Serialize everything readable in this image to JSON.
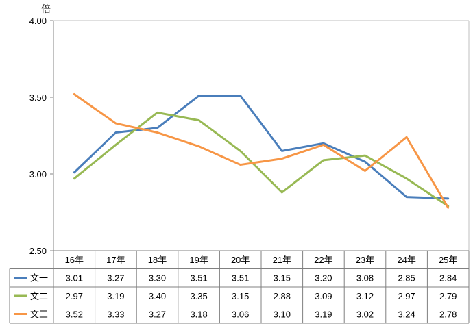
{
  "chart_data": {
    "type": "line",
    "unit_label": "倍",
    "ylim": [
      2.5,
      4.0
    ],
    "y_ticks": [
      "2.50",
      "3.00",
      "3.50",
      "4.00"
    ],
    "categories": [
      "16年",
      "17年",
      "18年",
      "19年",
      "20年",
      "21年",
      "22年",
      "23年",
      "24年",
      "25年"
    ],
    "series": [
      {
        "name": "文一",
        "color": "#4a7ebb",
        "values": [
          3.01,
          3.27,
          3.3,
          3.51,
          3.51,
          3.15,
          3.2,
          3.08,
          2.85,
          2.84
        ],
        "labels": [
          "3.01",
          "3.27",
          "3.30",
          "3.51",
          "3.51",
          "3.15",
          "3.20",
          "3.08",
          "2.85",
          "2.84"
        ]
      },
      {
        "name": "文二",
        "color": "#98b954",
        "values": [
          2.97,
          3.19,
          3.4,
          3.35,
          3.15,
          2.88,
          3.09,
          3.12,
          2.97,
          2.79
        ],
        "labels": [
          "2.97",
          "3.19",
          "3.40",
          "3.35",
          "3.15",
          "2.88",
          "3.09",
          "3.12",
          "2.97",
          "2.79"
        ]
      },
      {
        "name": "文三",
        "color": "#f79646",
        "values": [
          3.52,
          3.33,
          3.27,
          3.18,
          3.06,
          3.1,
          3.19,
          3.02,
          3.24,
          2.78
        ],
        "labels": [
          "3.52",
          "3.33",
          "3.27",
          "3.18",
          "3.06",
          "3.10",
          "3.19",
          "3.02",
          "3.24",
          "2.78"
        ]
      }
    ],
    "grid": false,
    "legend": "data table below plot"
  }
}
